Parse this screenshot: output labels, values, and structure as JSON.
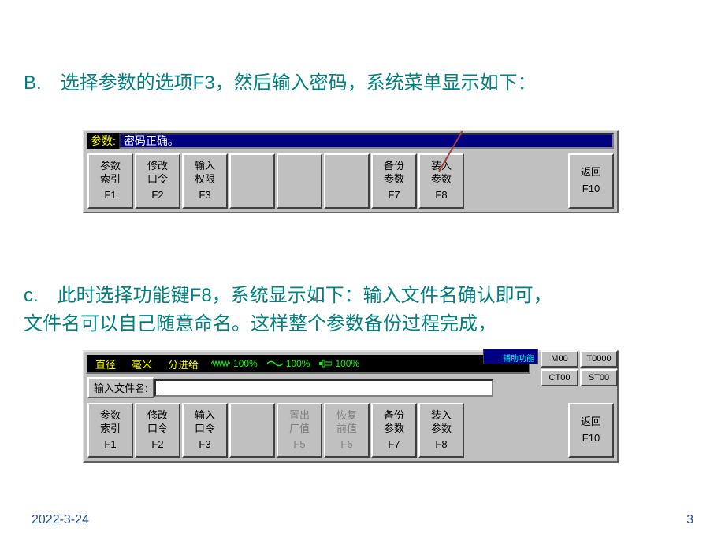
{
  "slide": {
    "text_b": "B.　选择参数的选项F3，然后输入密码，系统菜单显示如下：",
    "text_c_line1": "c.　此时选择功能键F8，系统显示如下：输入文件名确认即可，",
    "text_c_line2": "文件名可以自己随意命名。这样整个参数备份过程完成，",
    "date": "2022-3-24",
    "page_num": "3"
  },
  "panel1": {
    "status_label": "参数:",
    "status_text": "密码正确。",
    "fkeys": [
      {
        "lines": "参数\n索引",
        "fnum": "F1",
        "enabled": true
      },
      {
        "lines": "修改\n口令",
        "fnum": "F2",
        "enabled": true
      },
      {
        "lines": "输入\n权限",
        "fnum": "F3",
        "enabled": true
      },
      {
        "lines": "",
        "fnum": "",
        "enabled": false
      },
      {
        "lines": "",
        "fnum": "",
        "enabled": false
      },
      {
        "lines": "",
        "fnum": "",
        "enabled": false
      },
      {
        "lines": "备份\n参数",
        "fnum": "F7",
        "enabled": true
      },
      {
        "lines": "装入\n参数",
        "fnum": "F8",
        "enabled": true
      },
      {
        "lines": "",
        "fnum": "",
        "enabled": false
      },
      {
        "lines": "返回\n ",
        "fnum": "F10",
        "enabled": true
      }
    ]
  },
  "panel2": {
    "toolbar_hint": "辅助功能",
    "top_status": {
      "item1": "直径",
      "item2": "毫米",
      "item3": "分进给",
      "pct1": "100%",
      "pct2": "100%",
      "pct3": "100%"
    },
    "right_boxes": [
      [
        "M00",
        "T0000"
      ],
      [
        "CT00",
        "ST00"
      ]
    ],
    "input_label": "输入文件名:",
    "input_value": "",
    "fkeys": [
      {
        "lines": "参数\n索引",
        "fnum": "F1",
        "enabled": true
      },
      {
        "lines": "修改\n口令",
        "fnum": "F2",
        "enabled": true
      },
      {
        "lines": "输入\n口令",
        "fnum": "F3",
        "enabled": true
      },
      {
        "lines": "",
        "fnum": "",
        "enabled": false
      },
      {
        "lines": "置出\n厂值",
        "fnum": "F5",
        "enabled": false
      },
      {
        "lines": "恢复\n前值",
        "fnum": "F6",
        "enabled": false
      },
      {
        "lines": "备份\n参数",
        "fnum": "F7",
        "enabled": true
      },
      {
        "lines": "装入\n参数",
        "fnum": "F8",
        "enabled": true
      },
      {
        "lines": "",
        "fnum": "",
        "enabled": false
      },
      {
        "lines": "返回\n ",
        "fnum": "F10",
        "enabled": true
      }
    ]
  },
  "colors": {
    "teal_text": "#008080",
    "panel_bg": "#c0c0c0",
    "navy": "#000080",
    "yellow": "#ffff00",
    "green": "#00ff00",
    "footer": "#2050a0"
  }
}
